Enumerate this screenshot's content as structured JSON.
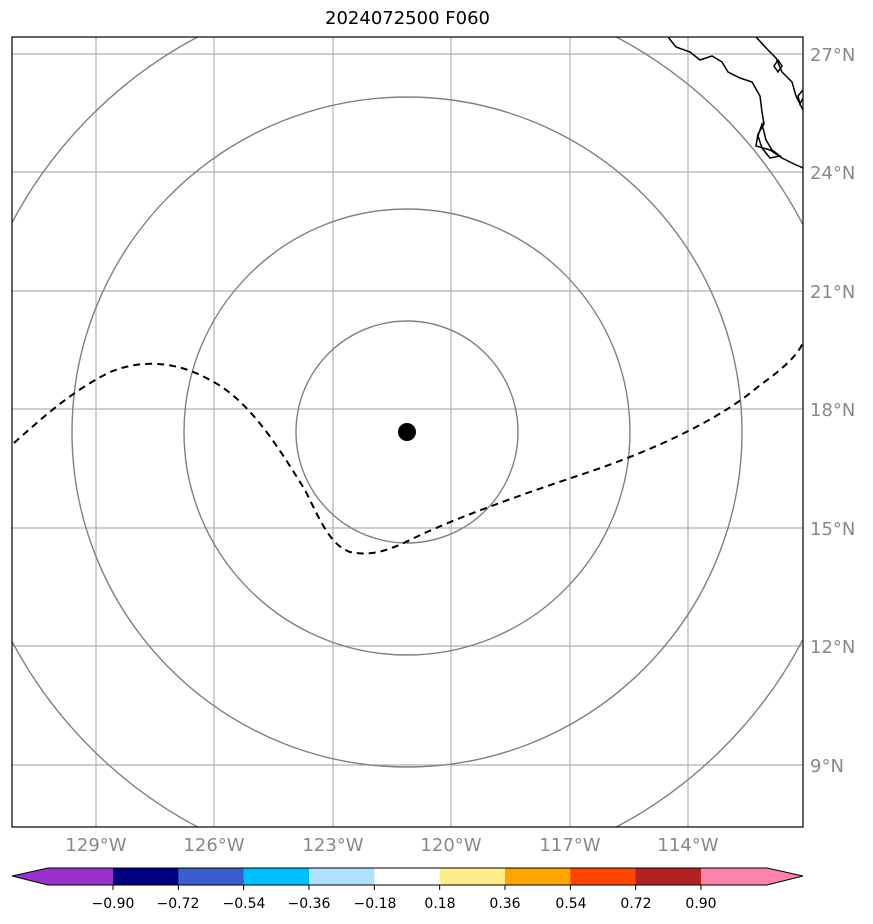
{
  "title": "2024072500 F060",
  "lat_labels": [
    "27°N",
    "24°N",
    "21°N",
    "18°N",
    "15°N",
    "12°N",
    "9°N"
  ],
  "lon_labels": [
    "129°W",
    "126°W",
    "123°W",
    "120°W",
    "117°W",
    "114°W"
  ],
  "colorbar": {
    "labels": [
      "−0.90",
      "−0.72",
      "−0.54",
      "−0.36",
      "−0.18",
      "0.18",
      "0.36",
      "0.54",
      "0.72",
      "0.90"
    ],
    "low_extend_color": "#9932CC",
    "colors": [
      "#000080",
      "#3A5FCD",
      "#00BFFF",
      "#B0E2FF",
      "#FFFFFF",
      "#FFEC8B",
      "#FFA500",
      "#FF4500",
      "#B22222"
    ],
    "high_extend_color": "#FF82AB"
  },
  "storm_center": {
    "lon": -121.1,
    "lat": 17.4
  },
  "colors": {
    "rings": "#808080",
    "grid": "#b0b0b0",
    "track": "#000000",
    "coast": "#000000"
  }
}
